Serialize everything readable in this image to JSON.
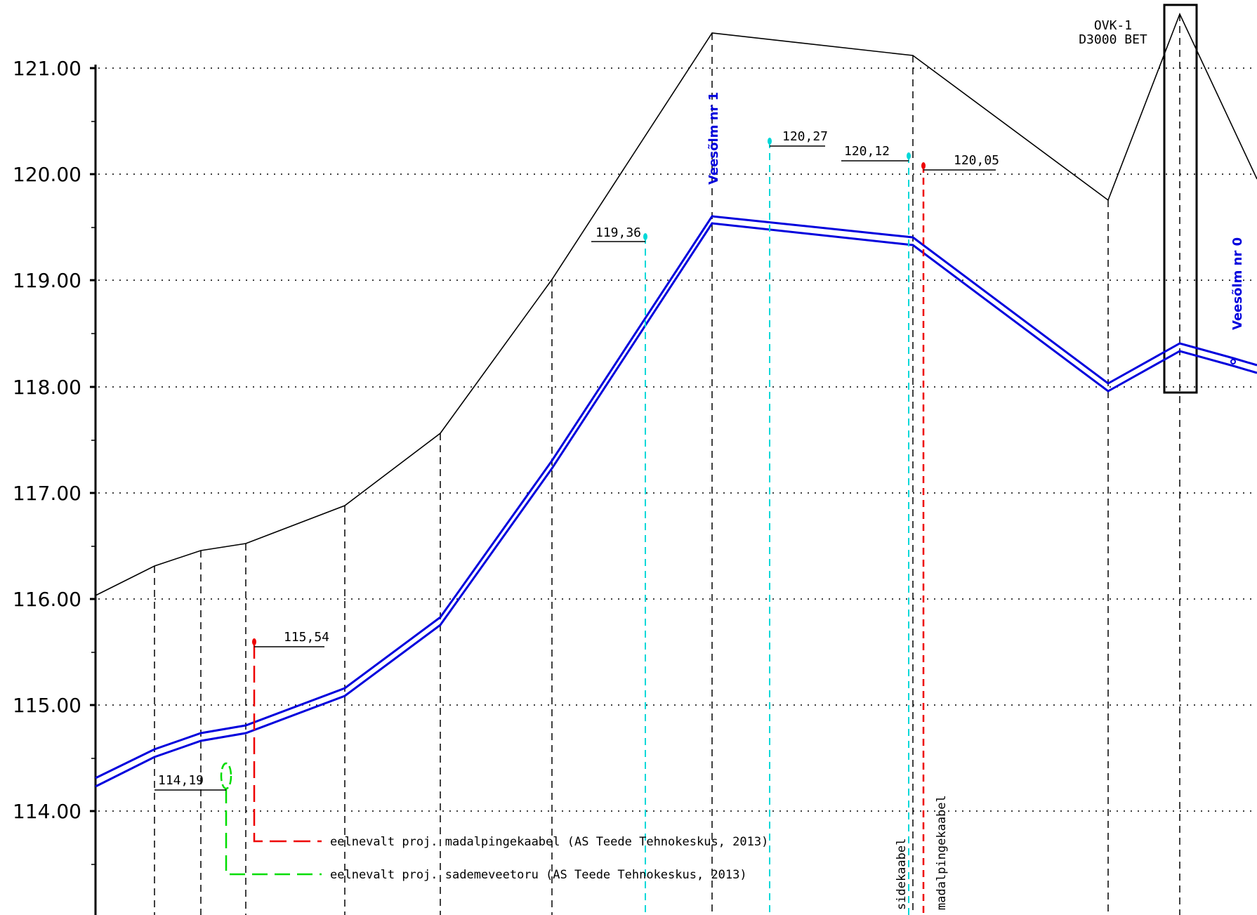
{
  "drawing": {
    "axis": {
      "ticks": [
        "121.00",
        "120.00",
        "119.00",
        "118.00",
        "117.00",
        "116.00",
        "115.00",
        "114.00"
      ]
    },
    "colors": {
      "pipe": "#0000dd",
      "ground": "#000000",
      "cyan": "#00d8d8",
      "red": "#ee0000",
      "green": "#00dd00"
    },
    "elevations": {
      "e119_36": "119,36",
      "e120_27": "120,27",
      "e120_12": "120,12",
      "e120_05": "120,05",
      "e115_54": "115,54",
      "e114_19": "114,19"
    },
    "nodes": {
      "veesolm1": "Veesõlm nr 1",
      "veesolm0": "Veesõlm nr 0"
    },
    "manhole": {
      "name": "OVK-1",
      "spec": "D3000 BET"
    },
    "cables": {
      "sidekaabel": "sidekaabel",
      "madalpingekaabel": "madalpingekaabel"
    },
    "notes": {
      "red": "eelnevalt proj. madalpingekaabel (AS Teede Tehnokeskus, 2013)",
      "green": "eelnevalt proj. sademeveetoru (AS Teede Tehnokeskus, 2013)"
    }
  }
}
